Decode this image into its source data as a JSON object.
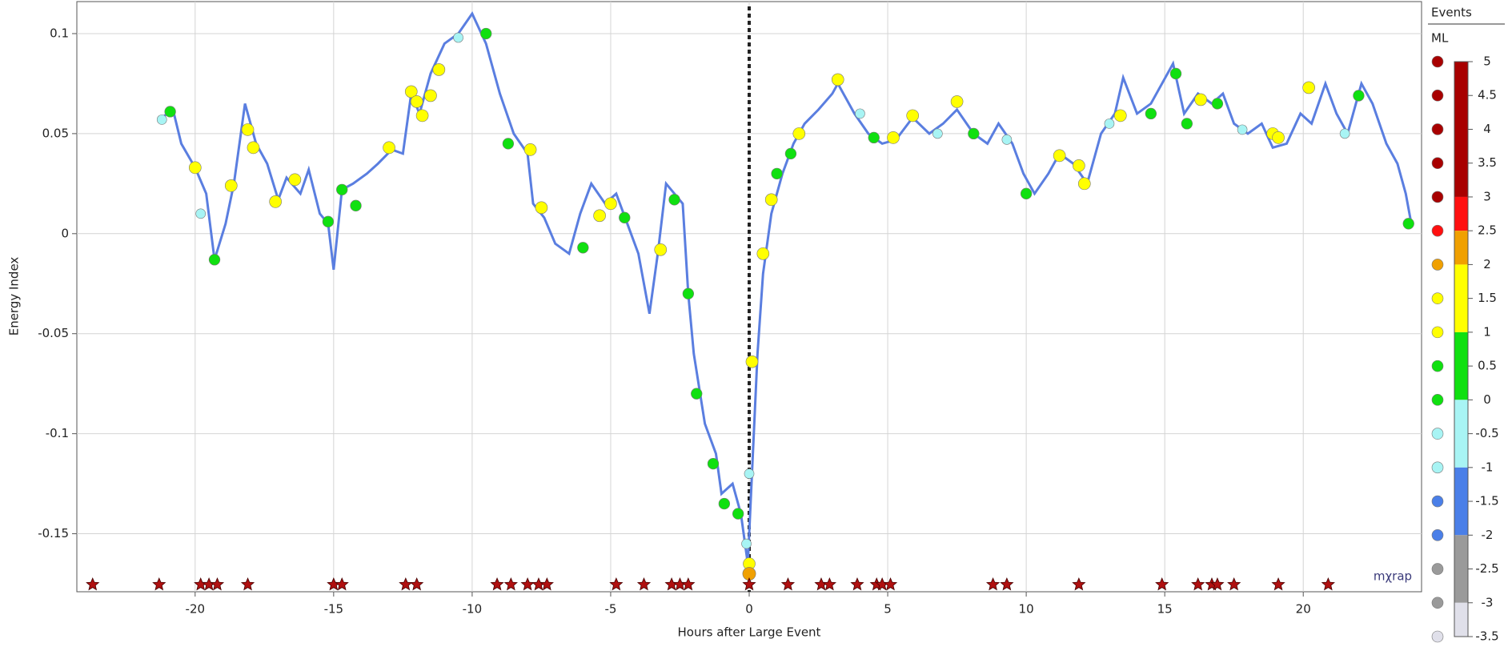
{
  "chart_data": {
    "type": "line",
    "x_label": "Hours after Large Event",
    "y_label": "Energy Index",
    "xlim": [
      -24.27,
      24.27
    ],
    "ylim": [
      -0.179,
      0.116
    ],
    "xticks": [
      -20,
      -15,
      -10,
      -5,
      0,
      5,
      10,
      15,
      20
    ],
    "yticks": [
      -0.15,
      -0.1,
      -0.05,
      0,
      0.05,
      0.1
    ],
    "grid": true,
    "line_color": "#5a7ee0",
    "marker_line": 0,
    "logo": "mχrap",
    "series": [
      {
        "x": [
          -21.2,
          -20.8,
          -20.5,
          -20.0,
          -19.6,
          -19.3,
          -18.9,
          -18.6,
          -18.2,
          -17.8,
          -17.4,
          -17.0,
          -16.7,
          -16.2,
          -15.9,
          -15.5,
          -15.2,
          -15.0,
          -14.7,
          -14.3,
          -13.8,
          -13.4,
          -12.9,
          -12.5,
          -12.2,
          -11.9,
          -11.5,
          -11.0,
          -10.5,
          -10.0,
          -9.5,
          -9.0,
          -8.5,
          -8.0,
          -7.8,
          -7.4,
          -7.0,
          -6.5,
          -6.1,
          -5.7,
          -5.2,
          -4.8,
          -4.4,
          -4.0,
          -3.6,
          -3.3,
          -3.0,
          -2.7,
          -2.4,
          -2.2,
          -2.0,
          -1.6,
          -1.2,
          -1.0,
          -0.6,
          -0.3,
          -0.05,
          0.1,
          0.3,
          0.5,
          0.8,
          1.2,
          1.6,
          2.0,
          2.5,
          3.0,
          3.2,
          3.8,
          4.3,
          4.8,
          5.3,
          5.9,
          6.5,
          7.0,
          7.5,
          8.1,
          8.6,
          9.0,
          9.5,
          9.9,
          10.3,
          10.8,
          11.2,
          11.7,
          12.2,
          12.7,
          13.2,
          13.5,
          14.0,
          14.5,
          14.9,
          15.3,
          15.7,
          16.2,
          16.7,
          17.1,
          17.5,
          18.0,
          18.5,
          18.9,
          19.4,
          19.9,
          20.3,
          20.8,
          21.2,
          21.6,
          22.1,
          22.5,
          23.0,
          23.4,
          23.7,
          23.9
        ],
        "values": [
          0.058,
          0.062,
          0.045,
          0.033,
          0.02,
          -0.013,
          0.005,
          0.025,
          0.065,
          0.045,
          0.035,
          0.017,
          0.028,
          0.02,
          0.032,
          0.01,
          0.005,
          -0.018,
          0.022,
          0.025,
          0.03,
          0.035,
          0.042,
          0.04,
          0.07,
          0.06,
          0.08,
          0.095,
          0.1,
          0.11,
          0.095,
          0.07,
          0.05,
          0.04,
          0.015,
          0.008,
          -0.005,
          -0.01,
          0.01,
          0.025,
          0.015,
          0.02,
          0.005,
          -0.01,
          -0.04,
          -0.01,
          0.025,
          0.02,
          0.015,
          -0.03,
          -0.06,
          -0.095,
          -0.11,
          -0.13,
          -0.125,
          -0.14,
          -0.165,
          -0.12,
          -0.06,
          -0.02,
          0.01,
          0.03,
          0.045,
          0.055,
          0.062,
          0.07,
          0.075,
          0.06,
          0.05,
          0.045,
          0.047,
          0.058,
          0.05,
          0.055,
          0.062,
          0.05,
          0.045,
          0.055,
          0.045,
          0.03,
          0.02,
          0.03,
          0.04,
          0.035,
          0.025,
          0.05,
          0.06,
          0.078,
          0.06,
          0.065,
          0.075,
          0.085,
          0.06,
          0.07,
          0.065,
          0.07,
          0.055,
          0.05,
          0.055,
          0.043,
          0.045,
          0.06,
          0.055,
          0.075,
          0.06,
          0.05,
          0.075,
          0.065,
          0.045,
          0.035,
          0.02,
          0.005
        ]
      }
    ],
    "events": {
      "x": [
        -20.9,
        -20.0,
        -19.3,
        -18.7,
        -18.1,
        -17.9,
        -17.1,
        -16.4,
        -15.2,
        -14.7,
        -14.2,
        -13.0,
        -12.2,
        -12.0,
        -11.8,
        -11.5,
        -11.2,
        -9.5,
        -8.7,
        -7.9,
        -7.5,
        -6.0,
        -5.4,
        -5.0,
        -4.5,
        -3.2,
        -2.7,
        -2.2,
        -1.9,
        -1.3,
        -0.9,
        -0.4,
        0,
        0,
        0.1,
        0.5,
        0.8,
        1.0,
        1.5,
        1.8,
        3.2,
        4.5,
        5.2,
        5.9,
        7.5,
        8.1,
        10.0,
        11.2,
        11.9,
        12.1,
        13.4,
        14.5,
        15.4,
        15.8,
        16.3,
        16.9,
        18.9,
        19.1,
        20.2,
        22.0,
        23.8,
        -10.5,
        -21.2,
        -19.8,
        4.0,
        6.8,
        9.3,
        13.0,
        17.8,
        21.5,
        -0.1,
        0
      ],
      "y": [
        0.061,
        0.033,
        -0.013,
        0.024,
        0.052,
        0.043,
        0.016,
        0.027,
        0.006,
        0.022,
        0.014,
        0.043,
        0.071,
        0.066,
        0.059,
        0.069,
        0.082,
        0.1,
        0.045,
        0.042,
        0.013,
        -0.007,
        0.009,
        0.015,
        0.008,
        -0.008,
        0.017,
        -0.03,
        -0.08,
        -0.115,
        -0.135,
        -0.14,
        -0.165,
        -0.17,
        -0.064,
        -0.01,
        0.017,
        0.03,
        0.04,
        0.05,
        0.077,
        0.048,
        0.048,
        0.059,
        0.066,
        0.05,
        0.02,
        0.039,
        0.034,
        0.025,
        0.059,
        0.06,
        0.08,
        0.055,
        0.067,
        0.065,
        0.05,
        0.048,
        0.073,
        0.069,
        0.005,
        0.098,
        0.057,
        0.01,
        0.06,
        0.05,
        0.047,
        0.055,
        0.052,
        0.05,
        -0.155,
        -0.12
      ],
      "ml": [
        0.3,
        1.2,
        0.3,
        1.2,
        1.2,
        1.2,
        1.2,
        1.2,
        0.3,
        0.3,
        0.3,
        1.2,
        1.2,
        1.2,
        1.2,
        1.2,
        1.2,
        0.3,
        0.3,
        1.2,
        1.2,
        0.3,
        1.2,
        1.2,
        0.3,
        1.2,
        0.3,
        0.3,
        0.3,
        0.3,
        0.3,
        0.3,
        1.2,
        2,
        1.2,
        1.2,
        1.2,
        0.3,
        0.3,
        1.2,
        1.2,
        0.3,
        1.2,
        1.2,
        1.2,
        0.3,
        0.3,
        1.2,
        1.2,
        1.2,
        1.2,
        0.3,
        0.3,
        0.3,
        1.2,
        0.3,
        1.2,
        1.2,
        1.2,
        0.3,
        0.3,
        -0.8,
        -0.8,
        -0.8,
        -0.8,
        -0.8,
        -0.8,
        -0.8,
        -0.8,
        -0.8,
        -0.8,
        -0.8
      ]
    },
    "large_events": {
      "x": [
        -23.7,
        -21.3,
        -19.8,
        -19.5,
        -19.2,
        -18.1,
        -15.0,
        -14.7,
        -12.4,
        -12.0,
        -9.1,
        -8.6,
        -8.0,
        -7.6,
        -7.3,
        -4.8,
        -3.8,
        -2.8,
        -2.5,
        -2.2,
        0,
        1.4,
        2.6,
        2.9,
        3.9,
        4.6,
        4.8,
        5.1,
        8.8,
        9.3,
        11.9,
        14.9,
        16.2,
        16.7,
        16.9,
        17.5,
        19.1,
        20.9
      ],
      "color": "#b01010"
    },
    "colorbar": {
      "title": "Events",
      "label": "ML",
      "range": [
        -3.5,
        5
      ],
      "ticks": [
        5,
        4.5,
        4,
        3.5,
        3,
        2.5,
        2,
        1.5,
        1,
        0.5,
        0,
        -0.5,
        -1,
        -1.5,
        -2,
        -2.5,
        -3,
        -3.5
      ],
      "segments": [
        {
          "from": 3,
          "to": 5,
          "color": "#a80000"
        },
        {
          "from": 2.5,
          "to": 3,
          "color": "#ff1010"
        },
        {
          "from": 2,
          "to": 2.5,
          "color": "#f0a000"
        },
        {
          "from": 1,
          "to": 2,
          "color": "#ffff00"
        },
        {
          "from": 0,
          "to": 1,
          "color": "#10e010"
        },
        {
          "from": -1,
          "to": 0,
          "color": "#a8f4f4"
        },
        {
          "from": -2,
          "to": -1,
          "color": "#4a7fe8"
        },
        {
          "from": -3,
          "to": -2,
          "color": "#9a9a9a"
        },
        {
          "from": -3.5,
          "to": -3,
          "color": "#e0e0ea"
        }
      ]
    }
  }
}
